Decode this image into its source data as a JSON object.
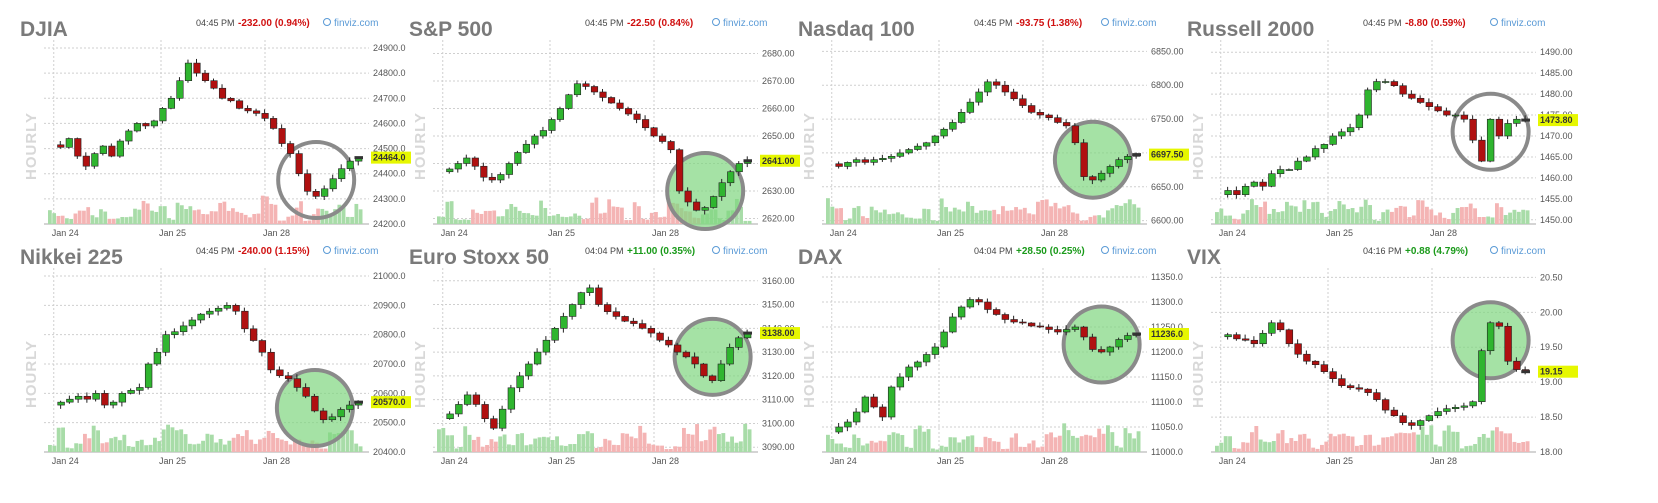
{
  "vertical_label": "HOURLY",
  "source_label": "finviz.com",
  "colors": {
    "up": "#2fb52f",
    "down": "#b01010",
    "up_vol": "#a8dca8",
    "down_vol": "#f4b4b4",
    "title": "#7a7a7a",
    "grid": "#cfcfcf",
    "highlight": "#e6f700",
    "circle_fill": "#7fd67f",
    "circle_stroke": "#8a8a8a",
    "pos": "#1a9a1a",
    "neg": "#d01010",
    "link": "#5a9ad6"
  },
  "chart_data": [
    {
      "type": "candlestick",
      "title": "DJIA",
      "time": "04:45 PM",
      "change": "-232.00 (0.94%)",
      "change_dir": "down",
      "last": "24464.0",
      "y_ticks": [
        "24900.0",
        "24800.0",
        "24700.0",
        "24600.0",
        "24500.0",
        "24400.0",
        "24300.0",
        "24200.0"
      ],
      "ylim": [
        24200,
        24900
      ],
      "x_ticks": [
        "Jan 24",
        "Jan 25",
        "Jan 28"
      ],
      "path": [
        24515,
        24505,
        24540,
        24470,
        24430,
        24480,
        24510,
        24470,
        24530,
        24570,
        24600,
        24590,
        24610,
        24660,
        24700,
        24770,
        24840,
        24800,
        24770,
        24740,
        24700,
        24690,
        24660,
        24650,
        24640,
        24620,
        24580,
        24520,
        24480,
        24400,
        24330,
        24310,
        24340,
        24380,
        24420,
        24450,
        24464
      ],
      "circle": {
        "index": 31,
        "value": 24375,
        "fill": false
      }
    },
    {
      "type": "candlestick",
      "title": "S&P 500",
      "time": "04:45 PM",
      "change": "-22.50 (0.84%)",
      "change_dir": "down",
      "last": "2641.00",
      "y_ticks": [
        "2680.00",
        "2670.00",
        "2660.00",
        "2650.00",
        "2640.00",
        "2630.00",
        "2620.00"
      ],
      "ylim": [
        2618,
        2682
      ],
      "x_ticks": [
        "Jan 24",
        "Jan 25",
        "Jan 28"
      ],
      "path": [
        2637,
        2638,
        2640,
        2642,
        2639,
        2635,
        2634,
        2636,
        2640,
        2644,
        2647,
        2650,
        2652,
        2656,
        2660,
        2665,
        2669,
        2668,
        2666,
        2664,
        2662,
        2660,
        2658,
        2656,
        2653,
        2650,
        2648,
        2645,
        2630,
        2626,
        2623,
        2624,
        2628,
        2633,
        2637,
        2640,
        2641
      ],
      "circle": {
        "index": 31,
        "value": 2630,
        "fill": true
      }
    },
    {
      "type": "candlestick",
      "title": "Nasdaq 100",
      "time": "04:45 PM",
      "change": "-93.75 (1.38%)",
      "change_dir": "down",
      "last": "6697.50",
      "y_ticks": [
        "6850.00",
        "6800.00",
        "6750.00",
        "6700.00",
        "6650.00",
        "6600.00"
      ],
      "ylim": [
        6595,
        6855
      ],
      "x_ticks": [
        "Jan 24",
        "Jan 25",
        "Jan 28"
      ],
      "path": [
        6684,
        6680,
        6686,
        6690,
        6686,
        6690,
        6692,
        6695,
        6700,
        6705,
        6710,
        6715,
        6725,
        6735,
        6745,
        6760,
        6775,
        6790,
        6805,
        6800,
        6790,
        6780,
        6770,
        6760,
        6756,
        6752,
        6745,
        6740,
        6715,
        6665,
        6660,
        6670,
        6680,
        6690,
        6695,
        6697
      ],
      "circle": {
        "index": 30,
        "value": 6690,
        "fill": true
      }
    },
    {
      "type": "candlestick",
      "title": "Russell 2000",
      "time": "04:45 PM",
      "change": "-8.80 (0.59%)",
      "change_dir": "down",
      "last": "1473.80",
      "y_ticks": [
        "1490.00",
        "1485.00",
        "1480.00",
        "1475.00",
        "1470.00",
        "1465.00",
        "1460.00",
        "1455.00",
        "1450.00"
      ],
      "ylim": [
        1449,
        1491
      ],
      "x_ticks": [
        "Jan 24",
        "Jan 25",
        "Jan 28"
      ],
      "path": [
        1456,
        1457,
        1456,
        1458,
        1459,
        1458,
        1461,
        1462,
        1462,
        1464,
        1465,
        1467,
        1468,
        1470,
        1471,
        1472,
        1475,
        1481,
        1483,
        1483,
        1482,
        1480,
        1479,
        1478,
        1477,
        1476,
        1475,
        1475,
        1474,
        1469,
        1464,
        1474,
        1470,
        1473,
        1474,
        1474
      ],
      "circle": {
        "index": 31,
        "value": 1471,
        "fill": false
      }
    },
    {
      "type": "candlestick",
      "title": "Nikkei 225",
      "time": "04:45 PM",
      "change": "-240.00 (1.15%)",
      "change_dir": "down",
      "last": "20570.0",
      "y_ticks": [
        "21000.0",
        "20900.0",
        "20800.0",
        "20700.0",
        "20600.0",
        "20500.0",
        "20400.0"
      ],
      "ylim": [
        20400,
        21000
      ],
      "x_ticks": [
        "Jan 24",
        "Jan 25",
        "Jan 28"
      ],
      "path": [
        20560,
        20570,
        20580,
        20590,
        20580,
        20600,
        20560,
        20570,
        20600,
        20610,
        20620,
        20700,
        20740,
        20800,
        20810,
        20830,
        20850,
        20870,
        20880,
        20890,
        20900,
        20880,
        20820,
        20780,
        20740,
        20680,
        20660,
        20650,
        20620,
        20590,
        20540,
        20510,
        20520,
        20545,
        20560,
        20570
      ],
      "circle": {
        "index": 30,
        "value": 20550,
        "fill": true
      }
    },
    {
      "type": "candlestick",
      "title": "Euro Stoxx 50",
      "time": "04:04 PM",
      "change": "+11.00 (0.35%)",
      "change_dir": "up",
      "last": "3138.00",
      "y_ticks": [
        "3160.00",
        "3150.00",
        "3140.00",
        "3130.00",
        "3120.00",
        "3110.00",
        "3100.00",
        "3090.00"
      ],
      "ylim": [
        3088,
        3162
      ],
      "x_ticks": [
        "Jan 24",
        "Jan 25",
        "Jan 28"
      ],
      "path": [
        3102,
        3104,
        3108,
        3112,
        3108,
        3102,
        3098,
        3106,
        3115,
        3120,
        3125,
        3130,
        3135,
        3140,
        3145,
        3150,
        3155,
        3157,
        3150,
        3147,
        3145,
        3143,
        3142,
        3140,
        3138,
        3135,
        3133,
        3130,
        3128,
        3125,
        3120,
        3118,
        3125,
        3132,
        3136,
        3138
      ],
      "circle": {
        "index": 31,
        "value": 3128,
        "fill": true
      }
    },
    {
      "type": "candlestick",
      "title": "DAX",
      "time": "04:04 PM",
      "change": "+28.50 (0.25%)",
      "change_dir": "up",
      "last": "11236.0",
      "y_ticks": [
        "11350.0",
        "11300.0",
        "11250.0",
        "11200.0",
        "11150.0",
        "11100.0",
        "11050.0",
        "11000.0"
      ],
      "ylim": [
        11000,
        11352
      ],
      "x_ticks": [
        "Jan 24",
        "Jan 25",
        "Jan 28"
      ],
      "path": [
        11040,
        11050,
        11060,
        11080,
        11110,
        11090,
        11070,
        11130,
        11150,
        11170,
        11180,
        11195,
        11210,
        11240,
        11270,
        11290,
        11305,
        11300,
        11285,
        11275,
        11265,
        11260,
        11258,
        11252,
        11250,
        11245,
        11240,
        11245,
        11250,
        11230,
        11205,
        11200,
        11210,
        11225,
        11233,
        11236
      ],
      "circle": {
        "index": 31,
        "value": 11215,
        "fill": true
      }
    },
    {
      "type": "candlestick",
      "title": "VIX",
      "time": "04:16 PM",
      "change": "+0.88 (4.79%)",
      "change_dir": "up",
      "last": "19.15",
      "y_ticks": [
        "20.50",
        "20.00",
        "19.50",
        "19.00",
        "18.50",
        "18.00"
      ],
      "ylim": [
        18,
        20.52
      ],
      "x_ticks": [
        "Jan 24",
        "Jan 25",
        "Jan 28"
      ],
      "path": [
        19.65,
        19.68,
        19.62,
        19.6,
        19.55,
        19.7,
        19.85,
        19.75,
        19.55,
        19.4,
        19.3,
        19.25,
        19.15,
        19.05,
        18.95,
        18.92,
        18.9,
        18.85,
        18.75,
        18.6,
        18.52,
        18.42,
        18.38,
        18.45,
        18.52,
        18.58,
        18.62,
        18.64,
        18.66,
        18.72,
        19.45,
        19.85,
        19.8,
        19.3,
        19.18,
        19.15
      ],
      "circle": {
        "index": 31,
        "value": 19.6,
        "fill": true
      }
    }
  ]
}
